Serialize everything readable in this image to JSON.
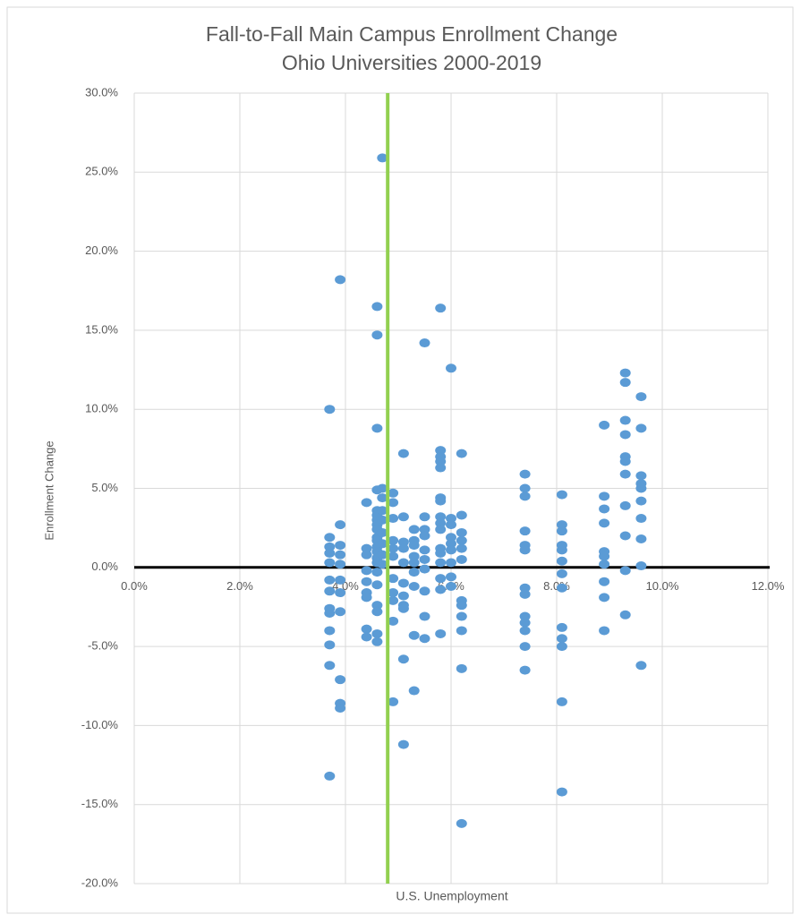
{
  "chart_data": {
    "type": "scatter",
    "title": "Fall-to-Fall Main Campus Enrollment Change",
    "subtitle": "Ohio Universities 2000-2019",
    "x_label": "U.S. Unemployment",
    "y_label": "Enrollment Change",
    "color": "#5b9bd5",
    "grid": true,
    "xlim": [
      0,
      12
    ],
    "xticks": [
      {
        "value": 0,
        "label": "0.0%"
      },
      {
        "value": 2,
        "label": "2.0%"
      },
      {
        "value": 4,
        "label": "4.0%"
      },
      {
        "value": 6,
        "label": "6.0%"
      },
      {
        "value": 8,
        "label": "8.0%"
      },
      {
        "value": 10,
        "label": "10.0%"
      },
      {
        "value": 12,
        "label": "12.0%"
      }
    ],
    "ylim": [
      -20,
      30
    ],
    "yticks": [
      {
        "value": 30,
        "label": "30.0%"
      },
      {
        "value": 25,
        "label": "25.0%"
      },
      {
        "value": 20,
        "label": "20.0%"
      },
      {
        "value": 15,
        "label": "15.0%"
      },
      {
        "value": 10,
        "label": "10.0%"
      },
      {
        "value": 5,
        "label": "5.0%"
      },
      {
        "value": 0,
        "label": "0.0%"
      },
      {
        "value": -5,
        "label": "-5.0%"
      },
      {
        "value": -10,
        "label": "-10.0%"
      },
      {
        "value": -15,
        "label": "-15.0%"
      },
      {
        "value": -20,
        "label": "-20.0%"
      }
    ],
    "vline": {
      "x": 4.8,
      "color": "#92d050"
    },
    "hline": {
      "y": 0,
      "color": "#000000"
    },
    "x": [
      3.7,
      3.7,
      3.7,
      3.7,
      3.7,
      3.7,
      3.7,
      3.7,
      3.7,
      3.7,
      3.7,
      3.7,
      3.7,
      3.9,
      3.9,
      3.9,
      3.9,
      3.9,
      3.9,
      3.9,
      3.9,
      3.9,
      3.9,
      3.9,
      4.4,
      4.4,
      4.4,
      4.4,
      4.4,
      4.4,
      4.4,
      4.4,
      4.4,
      4.6,
      4.6,
      4.6,
      4.6,
      4.6,
      4.6,
      4.6,
      4.6,
      4.6,
      4.6,
      4.6,
      4.6,
      4.6,
      4.6,
      4.6,
      4.6,
      4.6,
      4.6,
      4.6,
      4.6,
      4.6,
      4.7,
      4.7,
      4.7,
      4.7,
      4.7,
      4.7,
      4.7,
      4.7,
      4.7,
      4.9,
      4.9,
      4.9,
      4.9,
      4.9,
      4.9,
      4.9,
      4.9,
      4.9,
      4.9,
      4.9,
      5.1,
      5.1,
      5.1,
      5.1,
      5.1,
      5.1,
      5.1,
      5.1,
      5.1,
      5.1,
      5.1,
      5.3,
      5.3,
      5.3,
      5.3,
      5.3,
      5.3,
      5.3,
      5.3,
      5.3,
      5.5,
      5.5,
      5.5,
      5.5,
      5.5,
      5.5,
      5.5,
      5.5,
      5.5,
      5.5,
      5.8,
      5.8,
      5.8,
      5.8,
      5.8,
      5.8,
      5.8,
      5.8,
      5.8,
      5.8,
      5.8,
      5.8,
      5.8,
      5.8,
      5.8,
      5.8,
      6.0,
      6.0,
      6.0,
      6.0,
      6.0,
      6.0,
      6.0,
      6.0,
      6.0,
      6.2,
      6.2,
      6.2,
      6.2,
      6.2,
      6.2,
      6.2,
      6.2,
      6.2,
      6.2,
      6.2,
      6.2,
      7.4,
      7.4,
      7.4,
      7.4,
      7.4,
      7.4,
      7.4,
      7.4,
      7.4,
      7.4,
      7.4,
      7.4,
      7.4,
      8.1,
      8.1,
      8.1,
      8.1,
      8.1,
      8.1,
      8.1,
      8.1,
      8.1,
      8.1,
      8.1,
      8.1,
      8.1,
      8.9,
      8.9,
      8.9,
      8.9,
      8.9,
      8.9,
      8.9,
      8.9,
      8.9,
      8.9,
      9.3,
      9.3,
      9.3,
      9.3,
      9.3,
      9.3,
      9.3,
      9.3,
      9.3,
      9.3,
      9.3,
      9.6,
      9.6,
      9.6,
      9.6,
      9.6,
      9.6,
      9.6,
      9.6,
      9.6,
      9.6
    ],
    "values": [
      10.0,
      1.9,
      1.3,
      0.9,
      0.3,
      -0.8,
      -1.5,
      -2.6,
      -2.9,
      -4.0,
      -4.9,
      -6.2,
      -13.2,
      18.2,
      2.7,
      1.4,
      0.8,
      0.2,
      -0.8,
      -1.6,
      -2.8,
      -7.1,
      -8.6,
      -8.9,
      4.1,
      1.2,
      0.8,
      -0.2,
      -0.9,
      -1.6,
      -1.9,
      -3.9,
      -4.4,
      16.5,
      14.7,
      8.8,
      4.9,
      3.6,
      3.3,
      3.0,
      2.7,
      2.4,
      1.9,
      1.7,
      1.3,
      1.0,
      0.6,
      0.3,
      -0.3,
      -1.1,
      -2.4,
      -2.8,
      -4.2,
      -4.7,
      25.9,
      5.0,
      4.4,
      3.6,
      3.0,
      2.2,
      1.5,
      0.8,
      0.2,
      4.7,
      4.1,
      3.1,
      1.7,
      1.2,
      0.7,
      -0.7,
      -1.6,
      -2.1,
      -3.4,
      -8.5,
      7.2,
      3.2,
      1.6,
      1.2,
      0.3,
      -1.0,
      -1.8,
      -2.4,
      -2.6,
      -5.8,
      -11.2,
      2.4,
      1.7,
      1.4,
      0.7,
      0.3,
      -0.3,
      -1.2,
      -4.3,
      -7.8,
      14.2,
      3.2,
      2.4,
      2.0,
      1.1,
      0.5,
      -0.1,
      -1.5,
      -3.1,
      -4.5,
      16.4,
      7.4,
      7.0,
      6.7,
      6.3,
      4.4,
      4.2,
      3.2,
      2.8,
      2.4,
      1.2,
      0.9,
      0.3,
      -0.7,
      -1.4,
      -4.2,
      12.6,
      3.1,
      2.7,
      1.9,
      1.5,
      1.1,
      0.3,
      -0.6,
      -1.2,
      7.2,
      3.3,
      2.2,
      1.7,
      1.2,
      0.5,
      -2.1,
      -2.4,
      -3.1,
      -4.0,
      -6.4,
      -16.2,
      5.9,
      5.0,
      4.5,
      2.3,
      1.4,
      1.1,
      -1.3,
      -1.7,
      -3.1,
      -3.5,
      -4.0,
      -5.0,
      -6.5,
      4.6,
      2.7,
      2.3,
      1.4,
      1.1,
      0.4,
      -0.4,
      -1.3,
      -3.8,
      -4.5,
      -5.0,
      -8.5,
      -14.2,
      9.0,
      4.5,
      3.7,
      2.8,
      1.0,
      0.7,
      0.2,
      -0.9,
      -1.9,
      -4.0,
      12.3,
      11.7,
      9.3,
      8.4,
      7.0,
      6.7,
      5.9,
      3.9,
      2.0,
      -0.2,
      -3.0,
      10.8,
      8.8,
      5.8,
      5.3,
      5.0,
      4.2,
      3.1,
      1.8,
      0.1,
      -6.2
    ]
  }
}
